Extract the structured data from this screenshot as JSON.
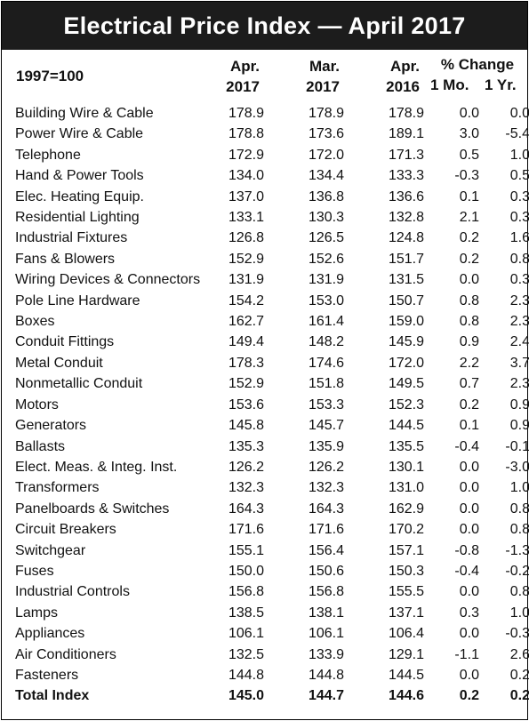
{
  "title": "Electrical Price Index — April 2017",
  "base_label": "1997=100",
  "columns": {
    "apr2017": [
      "Apr.",
      "2017"
    ],
    "mar2017": [
      "Mar.",
      "2017"
    ],
    "apr2016": [
      "Apr.",
      "2016"
    ],
    "pct_change": "% Change",
    "one_mo": "1 Mo.",
    "one_yr": "1 Yr."
  },
  "rows": [
    {
      "item": "Building Wire & Cable",
      "apr2017": "178.9",
      "mar2017": "178.9",
      "apr2016": "178.9",
      "mo": "0.0",
      "yr": "0.0"
    },
    {
      "item": "Power Wire & Cable",
      "apr2017": "178.8",
      "mar2017": "173.6",
      "apr2016": "189.1",
      "mo": "3.0",
      "yr": "-5.4"
    },
    {
      "item": "Telephone",
      "apr2017": "172.9",
      "mar2017": "172.0",
      "apr2016": "171.3",
      "mo": "0.5",
      "yr": "1.0"
    },
    {
      "item": "Hand & Power Tools",
      "apr2017": "134.0",
      "mar2017": "134.4",
      "apr2016": "133.3",
      "mo": "-0.3",
      "yr": "0.5"
    },
    {
      "item": "Elec. Heating Equip.",
      "apr2017": "137.0",
      "mar2017": "136.8",
      "apr2016": "136.6",
      "mo": "0.1",
      "yr": "0.3"
    },
    {
      "item": "Residential Lighting",
      "apr2017": "133.1",
      "mar2017": "130.3",
      "apr2016": "132.8",
      "mo": "2.1",
      "yr": "0.3"
    },
    {
      "item": "Industrial Fixtures",
      "apr2017": "126.8",
      "mar2017": "126.5",
      "apr2016": "124.8",
      "mo": "0.2",
      "yr": "1.6"
    },
    {
      "item": "Fans & Blowers",
      "apr2017": "152.9",
      "mar2017": "152.6",
      "apr2016": "151.7",
      "mo": "0.2",
      "yr": "0.8"
    },
    {
      "item": "Wiring Devices & Connectors",
      "apr2017": "131.9",
      "mar2017": "131.9",
      "apr2016": "131.5",
      "mo": "0.0",
      "yr": "0.3"
    },
    {
      "item": "Pole Line Hardware",
      "apr2017": "154.2",
      "mar2017": "153.0",
      "apr2016": "150.7",
      "mo": "0.8",
      "yr": "2.3"
    },
    {
      "item": "Boxes",
      "apr2017": "162.7",
      "mar2017": "161.4",
      "apr2016": "159.0",
      "mo": "0.8",
      "yr": "2.3"
    },
    {
      "item": "Conduit Fittings",
      "apr2017": "149.4",
      "mar2017": "148.2",
      "apr2016": "145.9",
      "mo": "0.9",
      "yr": "2.4"
    },
    {
      "item": "Metal Conduit",
      "apr2017": "178.3",
      "mar2017": "174.6",
      "apr2016": "172.0",
      "mo": "2.2",
      "yr": "3.7"
    },
    {
      "item": "Nonmetallic Conduit",
      "apr2017": "152.9",
      "mar2017": "151.8",
      "apr2016": "149.5",
      "mo": "0.7",
      "yr": "2.3"
    },
    {
      "item": "Motors",
      "apr2017": "153.6",
      "mar2017": "153.3",
      "apr2016": "152.3",
      "mo": "0.2",
      "yr": "0.9"
    },
    {
      "item": "Generators",
      "apr2017": "145.8",
      "mar2017": "145.7",
      "apr2016": "144.5",
      "mo": "0.1",
      "yr": "0.9"
    },
    {
      "item": "Ballasts",
      "apr2017": "135.3",
      "mar2017": "135.9",
      "apr2016": "135.5",
      "mo": "-0.4",
      "yr": "-0.1"
    },
    {
      "item": "Elect. Meas. & Integ. Inst.",
      "apr2017": "126.2",
      "mar2017": "126.2",
      "apr2016": "130.1",
      "mo": "0.0",
      "yr": "-3.0"
    },
    {
      "item": "Transformers",
      "apr2017": "132.3",
      "mar2017": "132.3",
      "apr2016": "131.0",
      "mo": "0.0",
      "yr": "1.0"
    },
    {
      "item": "Panelboards & Switches",
      "apr2017": "164.3",
      "mar2017": "164.3",
      "apr2016": "162.9",
      "mo": "0.0",
      "yr": "0.8"
    },
    {
      "item": "Circuit Breakers",
      "apr2017": "171.6",
      "mar2017": "171.6",
      "apr2016": "170.2",
      "mo": "0.0",
      "yr": "0.8"
    },
    {
      "item": "Switchgear",
      "apr2017": "155.1",
      "mar2017": "156.4",
      "apr2016": "157.1",
      "mo": "-0.8",
      "yr": "-1.3"
    },
    {
      "item": "Fuses",
      "apr2017": "150.0",
      "mar2017": "150.6",
      "apr2016": "150.3",
      "mo": "-0.4",
      "yr": "-0.2"
    },
    {
      "item": "Industrial Controls",
      "apr2017": "156.8",
      "mar2017": "156.8",
      "apr2016": "155.5",
      "mo": "0.0",
      "yr": "0.8"
    },
    {
      "item": "Lamps",
      "apr2017": "138.5",
      "mar2017": "138.1",
      "apr2016": "137.1",
      "mo": "0.3",
      "yr": "1.0"
    },
    {
      "item": "Appliances",
      "apr2017": "106.1",
      "mar2017": "106.1",
      "apr2016": "106.4",
      "mo": "0.0",
      "yr": "-0.3"
    },
    {
      "item": "Air Conditioners",
      "apr2017": "132.5",
      "mar2017": "133.9",
      "apr2016": "129.1",
      "mo": "-1.1",
      "yr": "2.6"
    },
    {
      "item": "Fasteners",
      "apr2017": "144.8",
      "mar2017": "144.8",
      "apr2016": "144.5",
      "mo": "0.0",
      "yr": "0.2"
    }
  ],
  "total": {
    "item": "Total Index",
    "apr2017": "145.0",
    "mar2017": "144.7",
    "apr2016": "144.6",
    "mo": "0.2",
    "yr": "0.2"
  }
}
